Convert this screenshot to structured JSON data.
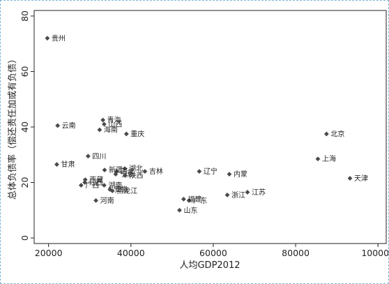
{
  "chart_data": {
    "type": "scatter",
    "xlabel": "人均GDP2012",
    "ylabel": "总体负债率（偿还责任加或有负债）",
    "xlim": [
      16500,
      102000
    ],
    "ylim": [
      -2,
      82
    ],
    "xticks": [
      20000,
      40000,
      60000,
      80000,
      100000
    ],
    "yticks": [
      0,
      20,
      40,
      60,
      80
    ],
    "grid": false,
    "marker_color": "#4a4a4a",
    "points": [
      {
        "label": "贵州",
        "x": 19700,
        "y": 72
      },
      {
        "label": "云南",
        "x": 22200,
        "y": 40.5
      },
      {
        "label": "甘肃",
        "x": 22000,
        "y": 26.5
      },
      {
        "label": "四川",
        "x": 29600,
        "y": 29.5
      },
      {
        "label": "青海",
        "x": 33200,
        "y": 42.5
      },
      {
        "label": "山西",
        "x": 33500,
        "y": 41
      },
      {
        "label": "海南",
        "x": 32400,
        "y": 39
      },
      {
        "label": "重庆",
        "x": 38900,
        "y": 37.5
      },
      {
        "label": "西藏",
        "x": 28900,
        "y": 21
      },
      {
        "label": "江西",
        "x": 28800,
        "y": 20
      },
      {
        "label": "广西",
        "x": 27900,
        "y": 19
      },
      {
        "label": "湖南",
        "x": 33500,
        "y": 19
      },
      {
        "label": "安徽",
        "x": 34900,
        "y": 17.5
      },
      {
        "label": "黑龙江",
        "x": 35500,
        "y": 17
      },
      {
        "label": "河南",
        "x": 31500,
        "y": 13.5
      },
      {
        "label": "新疆",
        "x": 33600,
        "y": 24.5
      },
      {
        "label": "河北",
        "x": 36500,
        "y": 24
      },
      {
        "label": "湖北",
        "x": 38500,
        "y": 25
      },
      {
        "label": "宁夏",
        "x": 36300,
        "y": 23
      },
      {
        "label": "陕西",
        "x": 38600,
        "y": 22.5
      },
      {
        "label": "吉林",
        "x": 43400,
        "y": 24
      },
      {
        "label": "辽宁",
        "x": 56600,
        "y": 24
      },
      {
        "label": "内蒙",
        "x": 63900,
        "y": 23
      },
      {
        "label": "福建",
        "x": 52800,
        "y": 14
      },
      {
        "label": "广东",
        "x": 54100,
        "y": 13.5
      },
      {
        "label": "山东",
        "x": 51800,
        "y": 10
      },
      {
        "label": "浙江",
        "x": 63400,
        "y": 15.5
      },
      {
        "label": "江苏",
        "x": 68300,
        "y": 16.5
      },
      {
        "label": "北京",
        "x": 87500,
        "y": 37.5
      },
      {
        "label": "上海",
        "x": 85400,
        "y": 28.5
      },
      {
        "label": "天津",
        "x": 93200,
        "y": 21.5
      }
    ]
  }
}
